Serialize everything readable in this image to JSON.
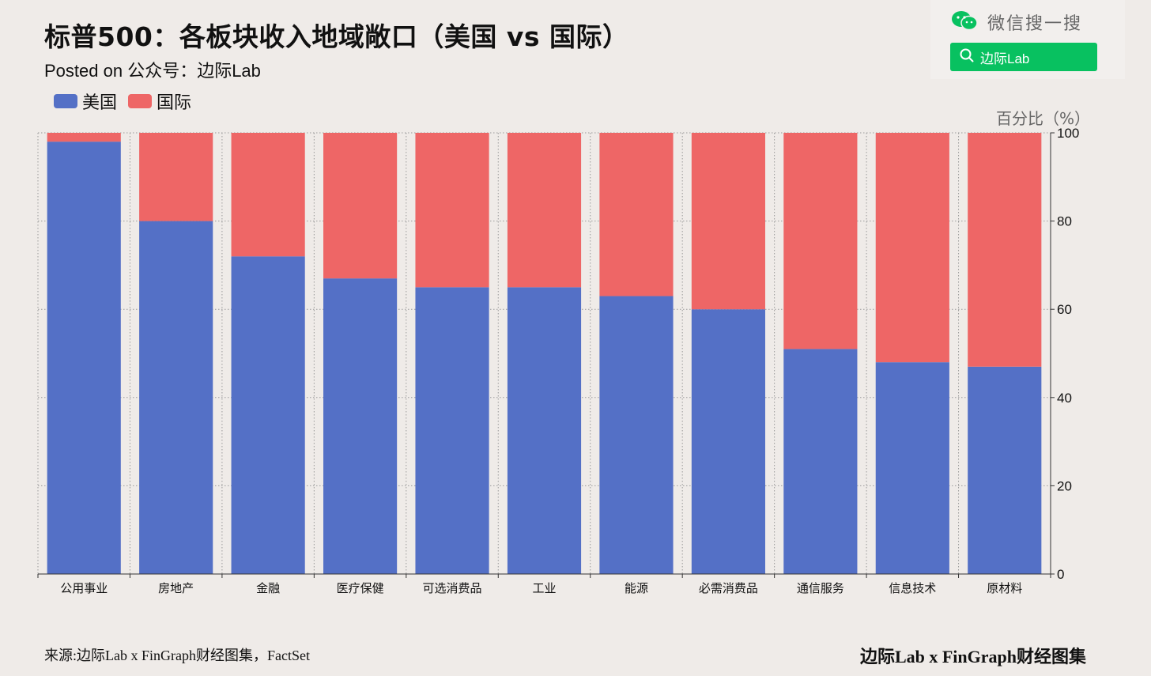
{
  "header": {
    "title": "标普500：各板块收入地域敞口（美国 vs 国际）",
    "subtitle": "Posted on 公众号：边际Lab"
  },
  "wechat": {
    "label": "微信搜一搜",
    "search_text": "边际Lab",
    "icon": "wechat-icon",
    "accent": "#08c160"
  },
  "footer": {
    "source": "来源:边际Lab x FinGraph财经图集，FactSet",
    "brand": "边际Lab x FinGraph财经图集"
  },
  "colors": {
    "us": "#5470c6",
    "intl": "#ee6666",
    "background": "#efebe8"
  },
  "chart_data": {
    "type": "bar",
    "stacked": true,
    "title": "标普500：各板块收入地域敞口（美国 vs 国际）",
    "ylabel": "百分比（%）",
    "ylim": [
      0,
      100
    ],
    "yticks": [
      0,
      20,
      40,
      60,
      80,
      100
    ],
    "y_axis_side": "right",
    "grid": true,
    "legend_position": "top-left",
    "categories": [
      "公用事业",
      "房地产",
      "金融",
      "医疗保健",
      "可选消费品",
      "工业",
      "能源",
      "必需消费品",
      "通信服务",
      "信息技术",
      "原材料"
    ],
    "series": [
      {
        "name": "美国",
        "values": [
          98,
          80,
          72,
          67,
          65,
          65,
          63,
          60,
          51,
          48,
          47
        ]
      },
      {
        "name": "国际",
        "values": [
          2,
          20,
          28,
          33,
          35,
          35,
          37,
          40,
          49,
          52,
          53
        ]
      }
    ]
  }
}
